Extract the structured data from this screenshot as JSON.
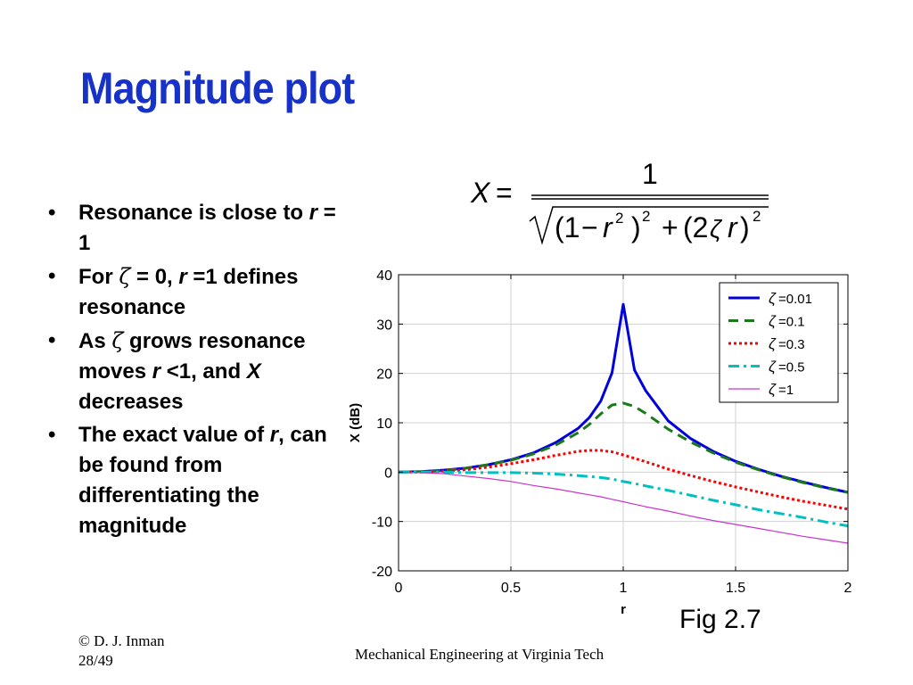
{
  "slide": {
    "title": "Magnitude plot",
    "bullets": [
      [
        {
          "t": "Resonance is close to "
        },
        {
          "t": "r",
          "i": true
        },
        {
          "t": " = 1"
        }
      ],
      [
        {
          "t": "For "
        },
        {
          "t": "ζ",
          "s": true
        },
        {
          "t": " = 0, "
        },
        {
          "t": "r",
          "i": true
        },
        {
          "t": " =1 defines resonance"
        }
      ],
      [
        {
          "t": "As "
        },
        {
          "t": "ζ",
          "s": true
        },
        {
          "t": " grows resonance moves "
        },
        {
          "t": "r",
          "i": true
        },
        {
          "t": " <1, and "
        },
        {
          "t": "X",
          "i": true
        },
        {
          "t": " decreases"
        }
      ],
      [
        {
          "t": "The exact value of "
        },
        {
          "t": "r",
          "i": true
        },
        {
          "t": ", can be found from differentiating the magnitude"
        }
      ]
    ],
    "formula": {
      "lhs": "X",
      "eq": "=",
      "numerator": "1",
      "denominator": {
        "p1": "(1",
        "minus": "−",
        "r": "r",
        "two": "2",
        "p2": ")",
        "plus": "+",
        "p3": "(2",
        "zeta": "ζ",
        "p4": ")"
      }
    },
    "fig_caption": "Fig 2.7",
    "copyright": "© D. J. Inman",
    "page": "28/49",
    "footer": "Mechanical Engineering at Virginia Tech"
  },
  "chart_data": {
    "type": "line",
    "title": "",
    "xlabel": "r",
    "ylabel": "X (dB)",
    "xlim": [
      0,
      2
    ],
    "ylim": [
      -20,
      40
    ],
    "xticks": [
      0,
      0.5,
      1,
      1.5,
      2
    ],
    "xtick_labels": [
      "0",
      "0.5",
      "1",
      "1.5",
      "2"
    ],
    "yticks": [
      -20,
      -10,
      0,
      10,
      20,
      30,
      40
    ],
    "ytick_labels": [
      "-20",
      "-10",
      "0",
      "10",
      "20",
      "30",
      "40"
    ],
    "grid": true,
    "legend_position": "top-right",
    "x": [
      0,
      0.1,
      0.2,
      0.3,
      0.4,
      0.5,
      0.6,
      0.7,
      0.8,
      0.85,
      0.9,
      0.95,
      1.0,
      1.05,
      1.1,
      1.2,
      1.3,
      1.4,
      1.5,
      1.6,
      1.7,
      1.8,
      1.9,
      2.0
    ],
    "series": [
      {
        "name": "=0.01",
        "zeta": 0.01,
        "color": "#0000dd",
        "dash": "solid",
        "width": 3,
        "values": [
          0,
          0.1,
          0.4,
          0.8,
          1.5,
          2.5,
          3.9,
          6.0,
          8.9,
          11.1,
          14.4,
          20.1,
          34,
          20.7,
          16.5,
          10.4,
          6.8,
          4.2,
          2.2,
          0.6,
          -0.8,
          -2.0,
          -3.1,
          -4.1
        ]
      },
      {
        "name": "=0.1",
        "zeta": 0.1,
        "color": "#1a7a1a",
        "dash": "dashed",
        "width": 3,
        "values": [
          0,
          0.1,
          0.3,
          0.8,
          1.5,
          2.4,
          3.7,
          5.5,
          8.0,
          9.7,
          11.8,
          13.6,
          14.0,
          13.3,
          11.9,
          8.7,
          6.1,
          3.9,
          2.0,
          0.5,
          -0.9,
          -2.1,
          -3.2,
          -4.1
        ]
      },
      {
        "name": "=0.3",
        "zeta": 0.3,
        "color": "#ff0000",
        "dash": "dotted",
        "width": 3,
        "values": [
          0,
          0.0,
          0.2,
          0.5,
          1.0,
          1.7,
          2.5,
          3.4,
          4.2,
          4.4,
          4.4,
          4.1,
          3.5,
          2.8,
          2.1,
          0.6,
          -0.7,
          -1.9,
          -3.0,
          -4.0,
          -5.0,
          -5.9,
          -6.7,
          -7.5
        ]
      },
      {
        "name": "=0.5",
        "zeta": 0.5,
        "color": "#00c0c0",
        "dash": "dashdot",
        "width": 3,
        "values": [
          0,
          -0.0,
          -0.0,
          -0.1,
          -0.1,
          -0.1,
          -0.2,
          -0.4,
          -0.7,
          -0.9,
          -1.1,
          -1.4,
          -1.9,
          -2.3,
          -2.8,
          -3.7,
          -4.7,
          -5.7,
          -6.6,
          -7.6,
          -8.4,
          -9.2,
          -10.1,
          -10.9
        ]
      },
      {
        "name": "=1",
        "zeta": 1,
        "color": "#cc33cc",
        "dash": "solid",
        "width": 1.2,
        "values": [
          0,
          -0.1,
          -0.3,
          -0.8,
          -1.3,
          -1.9,
          -2.7,
          -3.4,
          -4.2,
          -4.6,
          -5.0,
          -5.5,
          -6.0,
          -6.5,
          -7.0,
          -7.9,
          -8.9,
          -9.8,
          -10.6,
          -11.4,
          -12.2,
          -13.0,
          -13.7,
          -14.4
        ]
      }
    ]
  }
}
